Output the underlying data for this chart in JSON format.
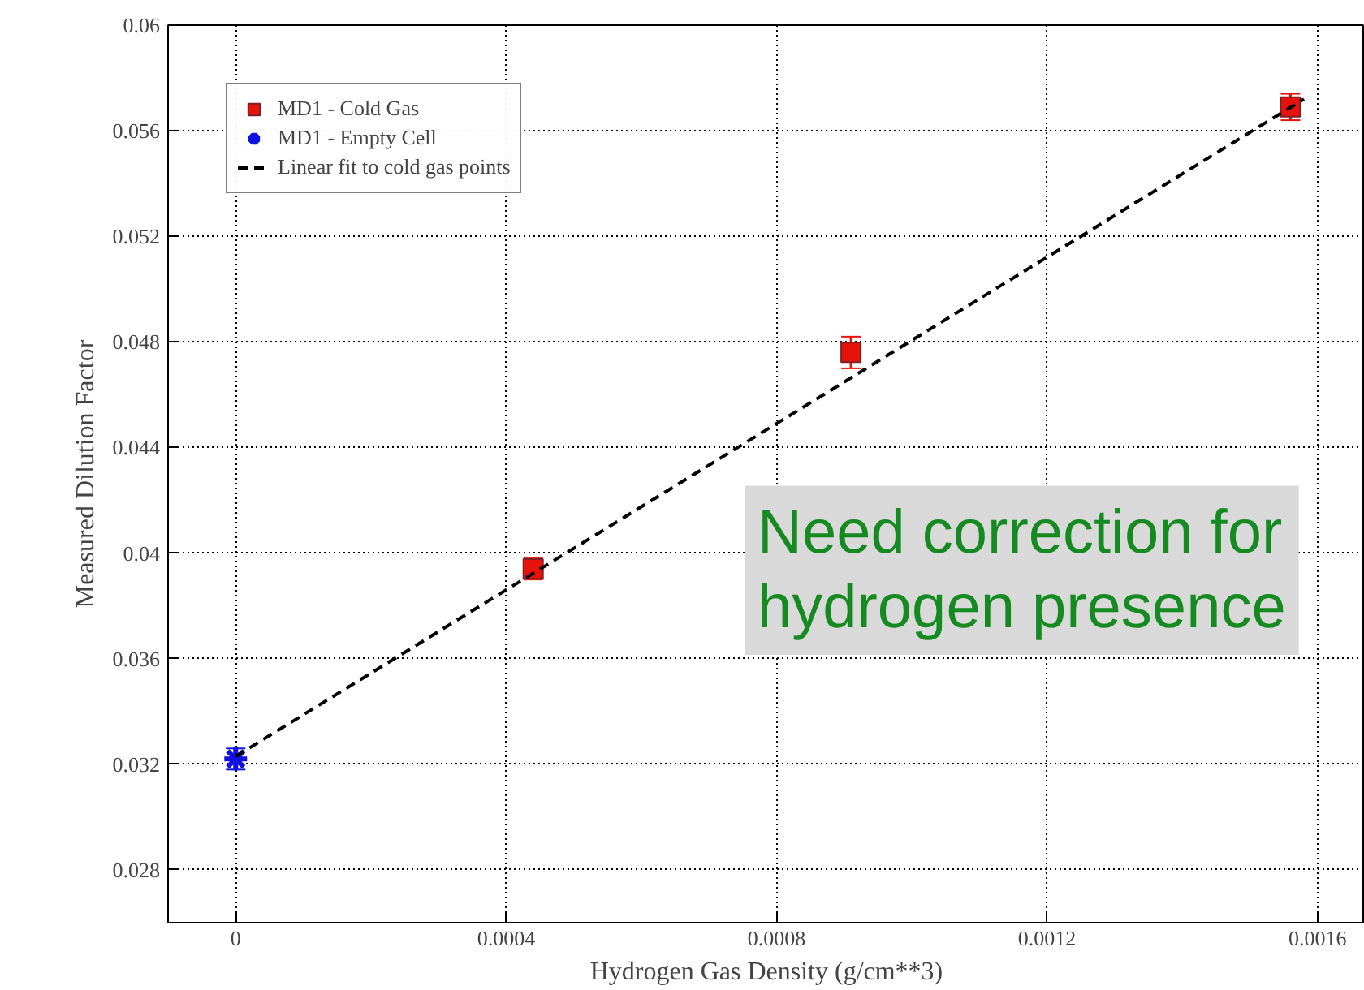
{
  "chart_data": {
    "type": "scatter",
    "xlabel": "Hydrogen Gas Density (g/cm**3)",
    "ylabel": "Measured Dilution Factor",
    "xlim": [
      -0.0001,
      0.00167
    ],
    "ylim": [
      0.026,
      0.06
    ],
    "xticks": [
      0,
      0.0004,
      0.0008,
      0.0012,
      0.0016
    ],
    "yticks": [
      0.028,
      0.032,
      0.036,
      0.04,
      0.044,
      0.048,
      0.052,
      0.056,
      0.06
    ],
    "grid": true,
    "legend": "top left",
    "series": [
      {
        "name": "MD1 - Cold Gas",
        "color": "#e8120c",
        "marker": "square",
        "x": [
          0.00044,
          0.00091,
          0.00156
        ],
        "values": [
          0.0394,
          0.0476,
          0.0569
        ],
        "errors": [
          0.0004,
          0.0006,
          0.0005
        ]
      },
      {
        "name": "MD1 - Empty Cell",
        "color": "#1010e0",
        "marker": "cross",
        "x": [
          0
        ],
        "values": [
          0.0322
        ],
        "errors": [
          0.0004
        ]
      },
      {
        "name": "Linear fit to cold gas points",
        "type": "line",
        "color": "#000000",
        "line_style": "dashed",
        "marker": "none",
        "x": [
          0,
          0.00158
        ],
        "values": [
          0.0323,
          0.0572
        ]
      }
    ],
    "annotations": [
      "Need correction for\nhydrogen presence"
    ]
  }
}
